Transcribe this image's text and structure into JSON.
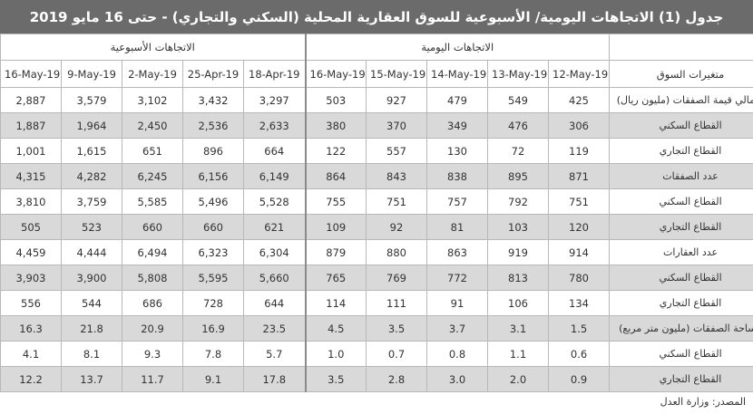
{
  "title": "جدول (1) الاتجاهات اليومية/ الأسبوعية للسوق العقارية المحلية (السكني والتجاري) - حتى 16 مايو 2019",
  "groups": {
    "weekly": "الاتجاهات الأسبوعية",
    "daily": "الاتجاهات اليومية"
  },
  "header": {
    "label": "متغيرات السوق",
    "weekly_dates": [
      "16-May-19",
      "9-May-19",
      "2-May-19",
      "25-Apr-19",
      "18-Apr-19"
    ],
    "daily_dates": [
      "16-May-19",
      "15-May-19",
      "14-May-19",
      "13-May-19",
      "12-May-19"
    ]
  },
  "rows": [
    {
      "label": "إجمالي قيمة الصفقات (مليون ريال)",
      "weekly": [
        "2,887",
        "3,579",
        "3,102",
        "3,432",
        "3,297"
      ],
      "daily": [
        "503",
        "927",
        "479",
        "549",
        "425"
      ]
    },
    {
      "label": "القطاع السكني",
      "weekly": [
        "1,887",
        "1,964",
        "2,450",
        "2,536",
        "2,633"
      ],
      "daily": [
        "380",
        "370",
        "349",
        "476",
        "306"
      ]
    },
    {
      "label": "القطاع التجاري",
      "weekly": [
        "1,001",
        "1,615",
        "651",
        "896",
        "664"
      ],
      "daily": [
        "122",
        "557",
        "130",
        "72",
        "119"
      ]
    },
    {
      "label": "عدد الصفقات",
      "weekly": [
        "4,315",
        "4,282",
        "6,245",
        "6,156",
        "6,149"
      ],
      "daily": [
        "864",
        "843",
        "838",
        "895",
        "871"
      ]
    },
    {
      "label": "القطاع السكني",
      "weekly": [
        "3,810",
        "3,759",
        "5,585",
        "5,496",
        "5,528"
      ],
      "daily": [
        "755",
        "751",
        "757",
        "792",
        "751"
      ]
    },
    {
      "label": "القطاع التجاري",
      "weekly": [
        "505",
        "523",
        "660",
        "660",
        "621"
      ],
      "daily": [
        "109",
        "92",
        "81",
        "103",
        "120"
      ]
    },
    {
      "label": "عدد العقارات",
      "weekly": [
        "4,459",
        "4,444",
        "6,494",
        "6,323",
        "6,304"
      ],
      "daily": [
        "879",
        "880",
        "863",
        "919",
        "914"
      ]
    },
    {
      "label": "القطاع السكني",
      "weekly": [
        "3,903",
        "3,900",
        "5,808",
        "5,595",
        "5,660"
      ],
      "daily": [
        "765",
        "769",
        "772",
        "813",
        "780"
      ]
    },
    {
      "label": "القطاع التجاري",
      "weekly": [
        "556",
        "544",
        "686",
        "728",
        "644"
      ],
      "daily": [
        "114",
        "111",
        "91",
        "106",
        "134"
      ]
    },
    {
      "label": "مساحة الصفقات (مليون متر مربع)",
      "weekly": [
        "16.3",
        "21.8",
        "20.9",
        "16.9",
        "23.5"
      ],
      "daily": [
        "4.5",
        "3.5",
        "3.7",
        "3.1",
        "1.5"
      ]
    },
    {
      "label": "القطاع السكني",
      "weekly": [
        "4.1",
        "8.1",
        "9.3",
        "7.8",
        "5.7"
      ],
      "daily": [
        "1.0",
        "0.7",
        "0.8",
        "1.1",
        "0.6"
      ]
    },
    {
      "label": "القطاع التجاري",
      "weekly": [
        "12.2",
        "13.7",
        "11.7",
        "9.1",
        "17.8"
      ],
      "daily": [
        "3.5",
        "2.8",
        "3.0",
        "2.0",
        "0.9"
      ]
    }
  ],
  "source": "المصدر: وزارة العدل"
}
